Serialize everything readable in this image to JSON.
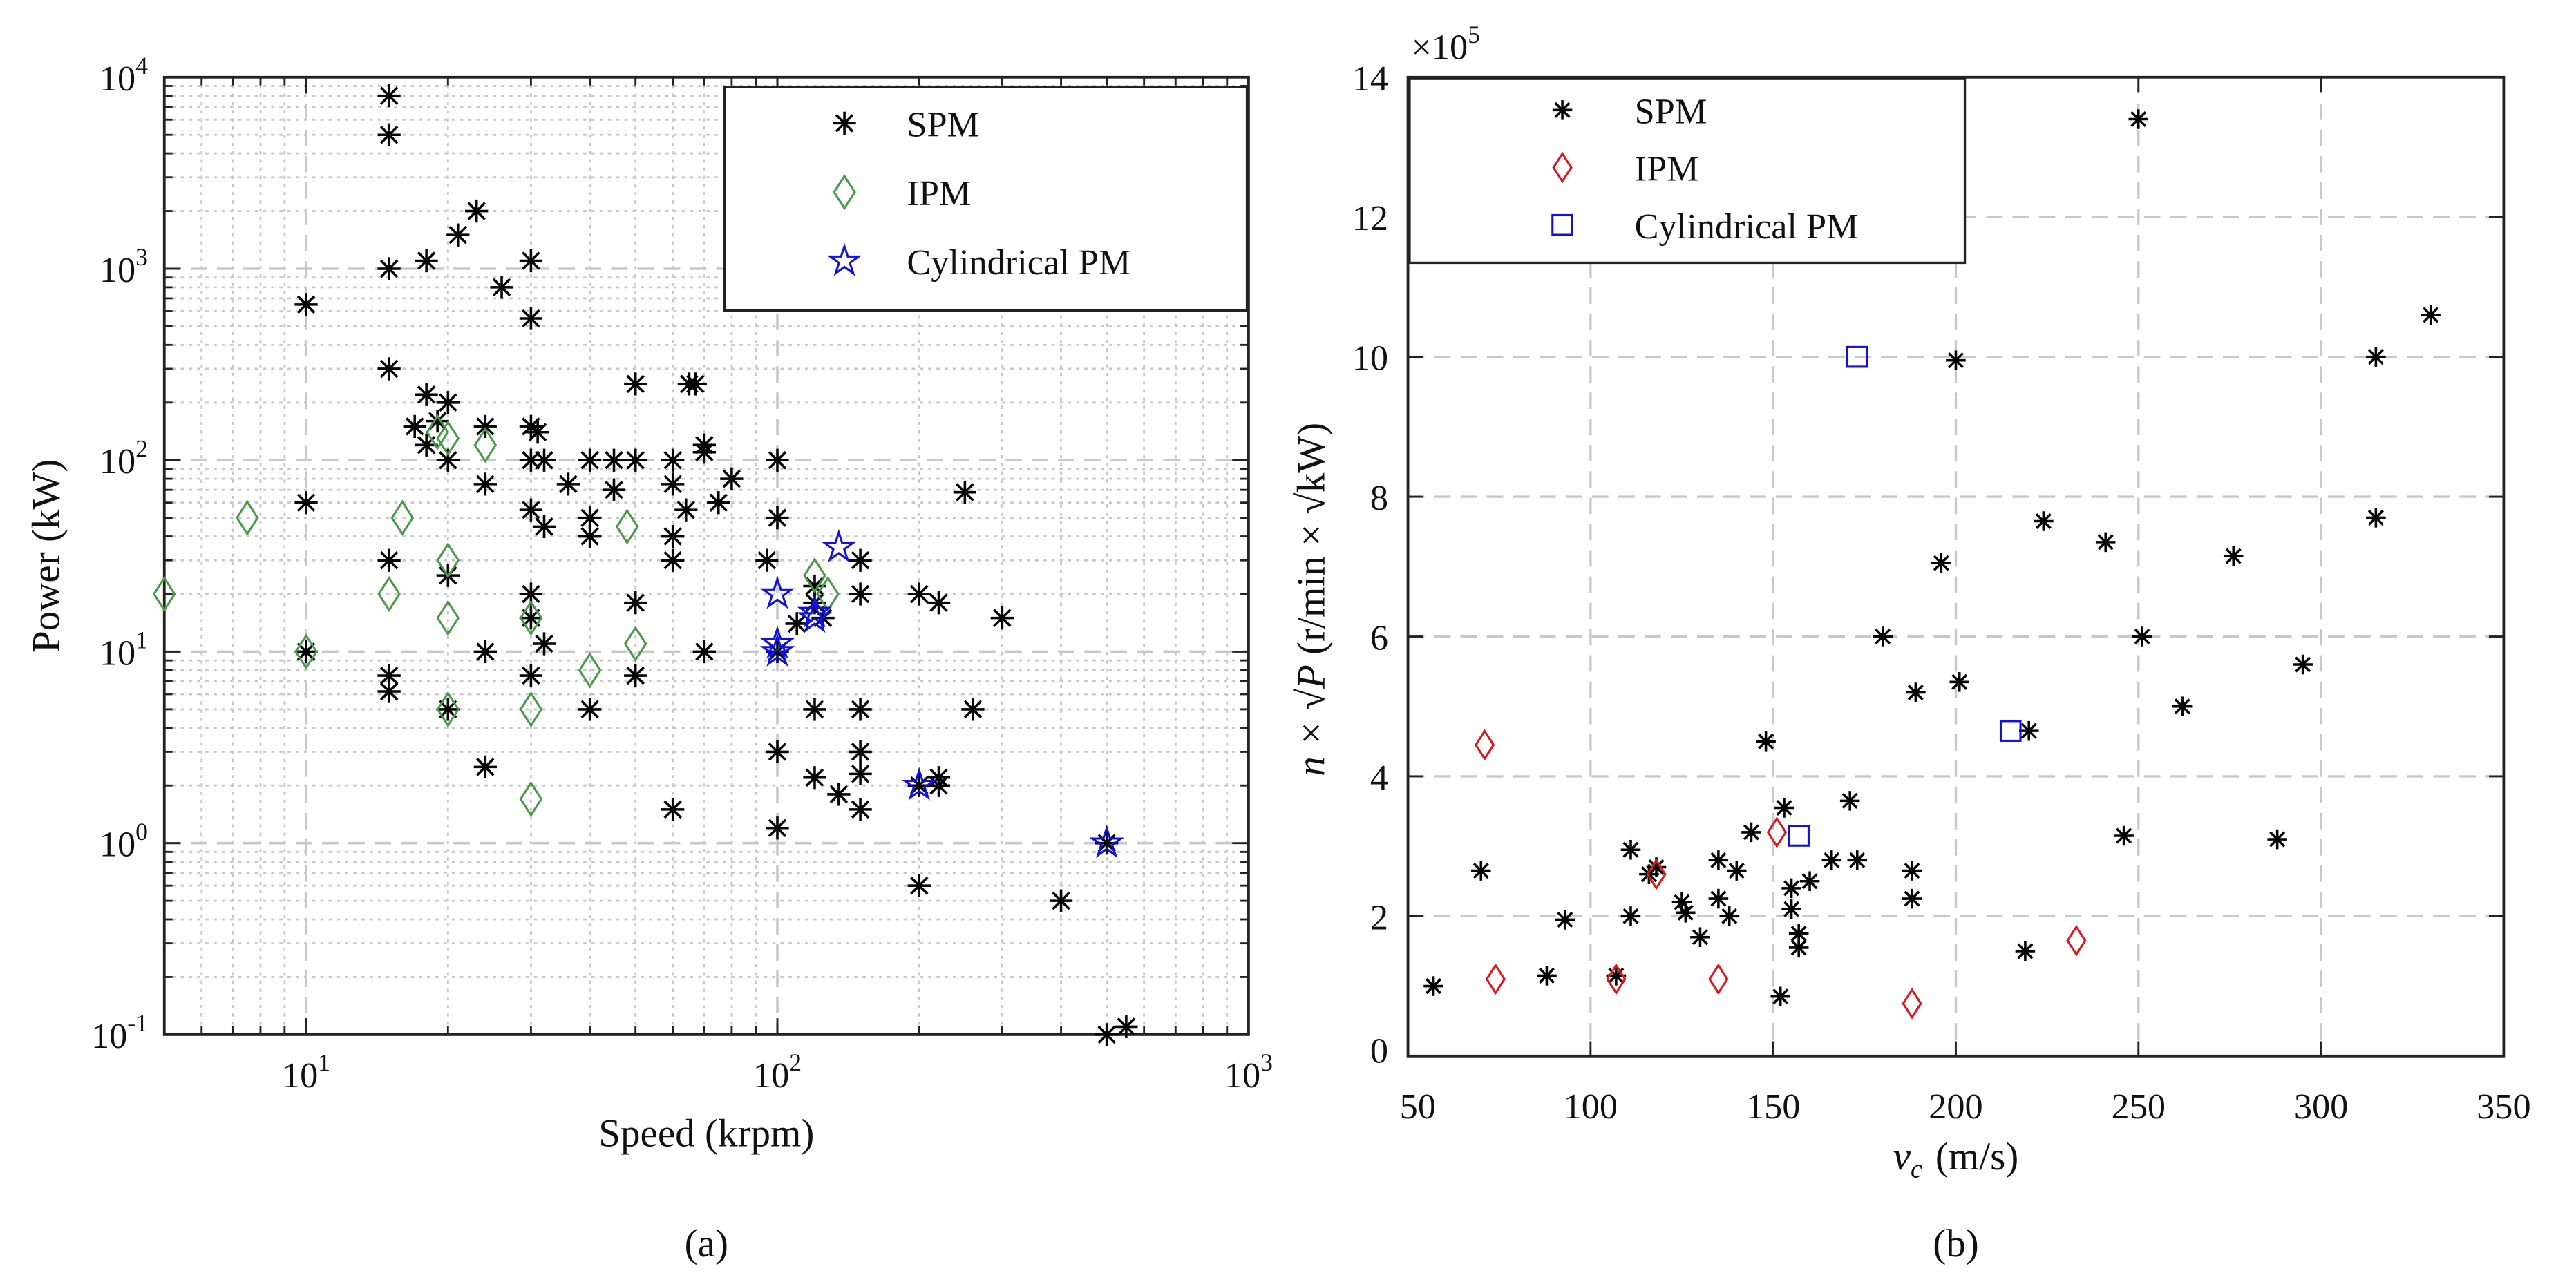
{
  "colors": {
    "spm": "#000000",
    "ipm_a": "#4a9a4a",
    "ipm_b": "#e0161b",
    "cyl": "#1010e0",
    "grid": "#c8c8c8"
  },
  "chart_data": [
    {
      "type": "scatter",
      "caption": "(a)",
      "xlabel": "Speed (krpm)",
      "ylabel": "Power (kW)",
      "xscale": "log",
      "yscale": "log",
      "xlim": [
        5,
        1000
      ],
      "ylim": [
        0.1,
        10000
      ],
      "xticks": [
        {
          "base": "10",
          "exp": "1",
          "value": 10
        },
        {
          "base": "10",
          "exp": "2",
          "value": 100
        },
        {
          "base": "10",
          "exp": "3",
          "value": 1000
        }
      ],
      "yticks": [
        {
          "base": "10",
          "exp": "-1",
          "value": 0.1
        },
        {
          "base": "10",
          "exp": "0",
          "value": 1
        },
        {
          "base": "10",
          "exp": "1",
          "value": 10
        },
        {
          "base": "10",
          "exp": "2",
          "value": 100
        },
        {
          "base": "10",
          "exp": "3",
          "value": 1000
        },
        {
          "base": "10",
          "exp": "4",
          "value": 10000
        }
      ],
      "grid": "major dashed, minor dotted",
      "legend_position": "top-right",
      "series": [
        {
          "name": "SPM",
          "marker": "asterisk",
          "points": [
            [
              15,
              8000
            ],
            [
              15,
              5000
            ],
            [
              23,
              2000
            ],
            [
              21,
              1500
            ],
            [
              18,
              1100
            ],
            [
              15,
              1000
            ],
            [
              30,
              1100
            ],
            [
              30,
              550
            ],
            [
              26,
              800
            ],
            [
              10,
              650
            ],
            [
              15,
              300
            ],
            [
              18,
              220
            ],
            [
              20,
              200
            ],
            [
              17,
              150
            ],
            [
              19,
              160
            ],
            [
              18,
              120
            ],
            [
              20,
              100
            ],
            [
              24,
              150
            ],
            [
              24,
              75
            ],
            [
              30,
              150
            ],
            [
              31,
              140
            ],
            [
              30,
              100
            ],
            [
              32,
              100
            ],
            [
              30,
              55
            ],
            [
              32,
              45
            ],
            [
              36,
              75
            ],
            [
              40,
              100
            ],
            [
              40,
              50
            ],
            [
              40,
              40
            ],
            [
              45,
              100
            ],
            [
              45,
              70
            ],
            [
              50,
              100
            ],
            [
              50,
              250
            ],
            [
              60,
              100
            ],
            [
              60,
              75
            ],
            [
              60,
              40
            ],
            [
              60,
              30
            ],
            [
              65,
              250
            ],
            [
              67,
              250
            ],
            [
              70,
              120
            ],
            [
              70,
              110
            ],
            [
              64,
              55
            ],
            [
              75,
              60
            ],
            [
              80,
              80
            ],
            [
              100,
              100
            ],
            [
              100,
              50
            ],
            [
              95,
              30
            ],
            [
              10,
              60
            ],
            [
              15,
              30
            ],
            [
              20,
              25
            ],
            [
              15,
              7.5
            ],
            [
              15,
              6.2
            ],
            [
              20,
              5
            ],
            [
              24,
              10
            ],
            [
              24,
              2.5
            ],
            [
              30,
              20
            ],
            [
              30,
              15
            ],
            [
              30,
              7.5
            ],
            [
              32,
              11
            ],
            [
              40,
              5
            ],
            [
              50,
              18
            ],
            [
              50,
              7.5
            ],
            [
              70,
              10
            ],
            [
              100,
              3
            ],
            [
              100,
              1.2
            ],
            [
              60,
              1.5
            ],
            [
              120,
              22
            ],
            [
              120,
              18
            ],
            [
              110,
              14
            ],
            [
              120,
              5
            ],
            [
              120,
              2.2
            ],
            [
              135,
              1.8
            ],
            [
              150,
              30
            ],
            [
              150,
              20
            ],
            [
              150,
              5
            ],
            [
              150,
              3
            ],
            [
              150,
              2.3
            ],
            [
              150,
              1.5
            ],
            [
              200,
              20
            ],
            [
              220,
              18
            ],
            [
              250,
              68
            ],
            [
              300,
              15
            ],
            [
              260,
              5
            ],
            [
              200,
              2
            ],
            [
              220,
              2.2
            ],
            [
              220,
              2
            ],
            [
              200,
              0.6
            ],
            [
              400,
              0.5
            ],
            [
              500,
              1
            ],
            [
              500,
              0.1
            ],
            [
              550,
              0.11
            ],
            [
              10,
              10
            ],
            [
              100,
              10
            ],
            [
              125,
              15
            ]
          ]
        },
        {
          "name": "IPM",
          "marker": "diamond",
          "points": [
            [
              5,
              20
            ],
            [
              7.5,
              50
            ],
            [
              10,
              10
            ],
            [
              15,
              20
            ],
            [
              16,
              50
            ],
            [
              19,
              140
            ],
            [
              20,
              130
            ],
            [
              20,
              30
            ],
            [
              20,
              15
            ],
            [
              20,
              5
            ],
            [
              24,
              120
            ],
            [
              30,
              15
            ],
            [
              30,
              5
            ],
            [
              30,
              1.7
            ],
            [
              40,
              8
            ],
            [
              48,
              45
            ],
            [
              50,
              11
            ],
            [
              120,
              25
            ],
            [
              128,
              20
            ]
          ]
        },
        {
          "name": "Cylindrical PM",
          "marker": "pentagram",
          "points": [
            [
              100,
              20
            ],
            [
              100,
              10
            ],
            [
              100,
              11
            ],
            [
              120,
              15
            ],
            [
              120,
              16
            ],
            [
              135,
              35
            ],
            [
              200,
              2
            ],
            [
              500,
              1
            ]
          ]
        }
      ]
    },
    {
      "type": "scatter",
      "caption": "(b)",
      "xlabel_var": "v",
      "xlabel_sub": "c",
      "xlabel_unit": "(m/s)",
      "ylabel_left": "n × √P",
      "ylabel_unit": "(r/min × √kW)",
      "y_multiplier": "×10",
      "y_multiplier_exp": "5",
      "xlim": [
        50,
        350
      ],
      "ylim": [
        0,
        14
      ],
      "xticks": [
        "50",
        "100",
        "150",
        "200",
        "250",
        "300",
        "350"
      ],
      "yticks": [
        "0",
        "2",
        "4",
        "6",
        "8",
        "10",
        "12",
        "14"
      ],
      "grid": "major dashed",
      "legend_position": "top-left",
      "series": [
        {
          "name": "SPM",
          "marker": "asterisk",
          "points": [
            [
              250,
              13.4
            ],
            [
              330,
              10.6
            ],
            [
              315,
              10
            ],
            [
              200,
              9.95
            ],
            [
              315,
              7.7
            ],
            [
              224,
              7.65
            ],
            [
              241,
              7.35
            ],
            [
              276,
              7.15
            ],
            [
              196,
              7.05
            ],
            [
              180,
              6.0
            ],
            [
              251,
              6.0
            ],
            [
              201,
              5.35
            ],
            [
              295,
              5.6
            ],
            [
              189,
              5.2
            ],
            [
              262,
              5.0
            ],
            [
              220,
              4.65
            ],
            [
              148,
              4.5
            ],
            [
              171,
              3.65
            ],
            [
              153,
              3.55
            ],
            [
              246,
              3.15
            ],
            [
              288,
              3.1
            ],
            [
              70,
              2.65
            ],
            [
              111,
              2.95
            ],
            [
              116,
              2.6
            ],
            [
              118,
              2.7
            ],
            [
              135,
              2.8
            ],
            [
              140,
              2.65
            ],
            [
              144,
              3.2
            ],
            [
              135,
              2.25
            ],
            [
              138,
              2.0
            ],
            [
              125,
              2.2
            ],
            [
              126,
              2.05
            ],
            [
              130,
              1.7
            ],
            [
              93,
              1.95
            ],
            [
              111,
              2.0
            ],
            [
              155,
              2.4
            ],
            [
              155,
              2.1
            ],
            [
              160,
              2.5
            ],
            [
              166,
              2.8
            ],
            [
              173,
              2.8
            ],
            [
              188,
              2.65
            ],
            [
              188,
              2.25
            ],
            [
              157,
              1.75
            ],
            [
              157,
              1.55
            ],
            [
              152,
              0.85
            ],
            [
              219,
              1.5
            ],
            [
              57,
              1.0
            ],
            [
              88,
              1.15
            ],
            [
              107,
              1.15
            ]
          ]
        },
        {
          "name": "IPM",
          "marker": "diamond",
          "points": [
            [
              71,
              4.45
            ],
            [
              74,
              1.1
            ],
            [
              107,
              1.1
            ],
            [
              118,
              2.6
            ],
            [
              135,
              1.1
            ],
            [
              151,
              3.2
            ],
            [
              188,
              0.75
            ],
            [
              233,
              1.65
            ]
          ]
        },
        {
          "name": "Cylindrical PM",
          "marker": "square",
          "points": [
            [
              173,
              10
            ],
            [
              215,
              4.65
            ],
            [
              157,
              3.15
            ]
          ]
        }
      ]
    }
  ]
}
